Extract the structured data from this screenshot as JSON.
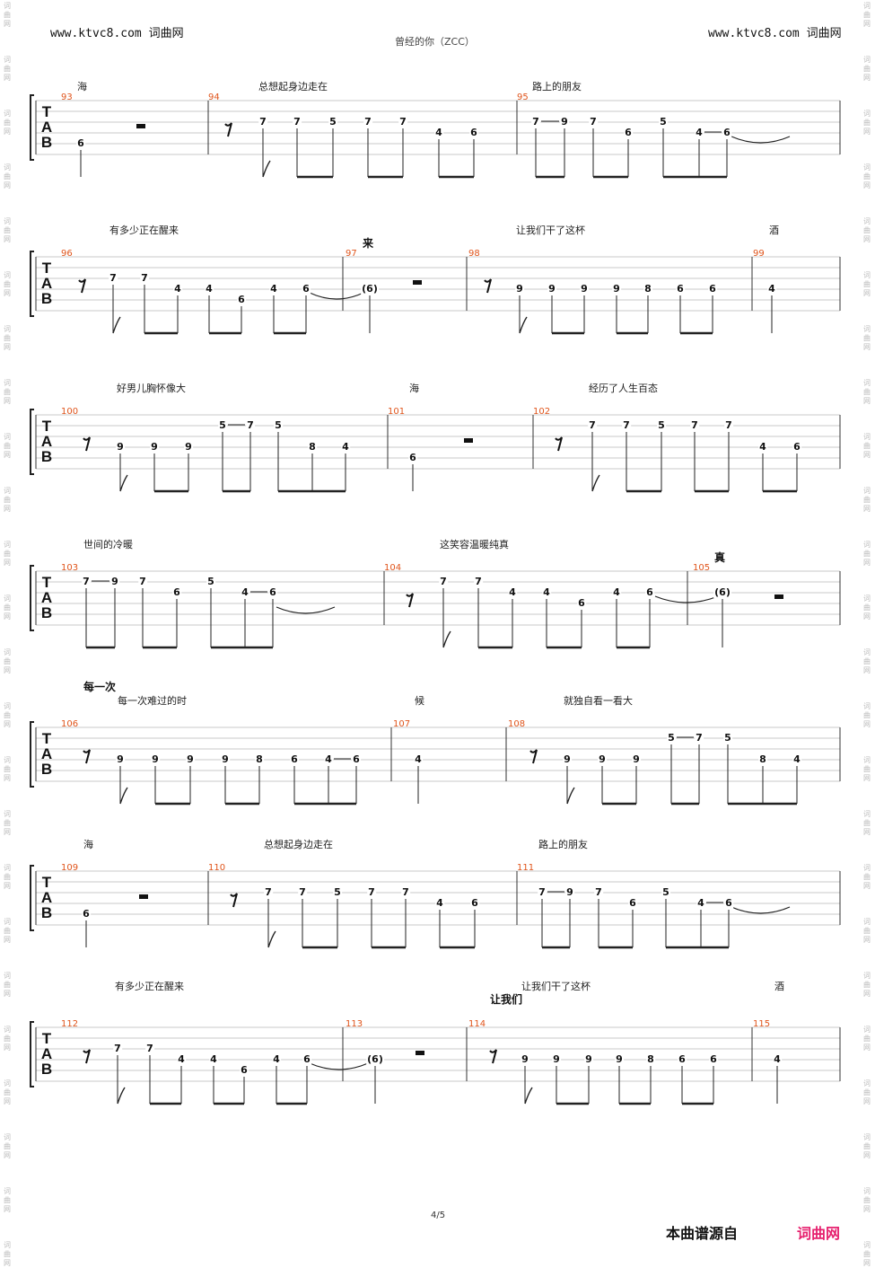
{
  "header": {
    "left_site": "www.ktvc8.com 词曲网",
    "right_site": "www.ktvc8.com 词曲网",
    "title": "曾经的你（ZCC）"
  },
  "side_watermark": "词曲网",
  "tab_letters": [
    "T",
    "A",
    "B"
  ],
  "systems": [
    {
      "lyrics": [
        "海",
        "总想起身边走在",
        "路上的朋友"
      ],
      "bold_text": [],
      "measures": [
        {
          "number": "93",
          "notes": [
            "6"
          ]
        },
        {
          "number": "94",
          "notes": [
            "7",
            "7",
            "5",
            "7",
            "7",
            "4",
            "6"
          ]
        },
        {
          "number": "95",
          "notes": [
            "7",
            "9",
            "7",
            "6",
            "5",
            "4",
            "6"
          ]
        }
      ]
    },
    {
      "lyrics": [
        "有多少正在醒来",
        "让我们干了这杯",
        "酒"
      ],
      "bold_text": [
        "来"
      ],
      "measures": [
        {
          "number": "96",
          "notes": [
            "7",
            "7",
            "4",
            "4",
            "6",
            "4",
            "6"
          ]
        },
        {
          "number": "97",
          "notes": [
            "(6)"
          ]
        },
        {
          "number": "98",
          "notes": [
            "9",
            "9",
            "9",
            "9",
            "8",
            "6",
            "6"
          ]
        },
        {
          "number": "99",
          "notes": [
            "4"
          ]
        }
      ]
    },
    {
      "lyrics": [
        "好男儿胸怀像大",
        "海",
        "经历了人生百态"
      ],
      "bold_text": [],
      "measures": [
        {
          "number": "100",
          "notes": [
            "9",
            "9",
            "9",
            "5",
            "7",
            "5",
            "8",
            "4"
          ]
        },
        {
          "number": "101",
          "notes": [
            "6"
          ]
        },
        {
          "number": "102",
          "notes": [
            "7",
            "7",
            "5",
            "7",
            "7",
            "4",
            "6"
          ]
        }
      ]
    },
    {
      "lyrics": [
        "世间的冷暖",
        "这笑容温暖纯真"
      ],
      "bold_text": [
        "真"
      ],
      "measures": [
        {
          "number": "103",
          "notes": [
            "7",
            "9",
            "7",
            "6",
            "5",
            "4",
            "6"
          ]
        },
        {
          "number": "104",
          "notes": [
            "7",
            "7",
            "4",
            "4",
            "6",
            "4",
            "6"
          ]
        },
        {
          "number": "105",
          "notes": [
            "(6)"
          ]
        }
      ]
    },
    {
      "lyrics": [
        "每一次难过的时",
        "候",
        "就独自看一看大"
      ],
      "bold_text": [
        "每一次"
      ],
      "measures": [
        {
          "number": "106",
          "notes": [
            "9",
            "9",
            "9",
            "9",
            "8",
            "6",
            "4",
            "6"
          ]
        },
        {
          "number": "107",
          "notes": [
            "4"
          ]
        },
        {
          "number": "108",
          "notes": [
            "9",
            "9",
            "9",
            "5",
            "7",
            "5",
            "8",
            "4"
          ]
        }
      ]
    },
    {
      "lyrics": [
        "海",
        "总想起身边走在",
        "路上的朋友"
      ],
      "bold_text": [],
      "measures": [
        {
          "number": "109",
          "notes": [
            "6"
          ]
        },
        {
          "number": "110",
          "notes": [
            "7",
            "7",
            "5",
            "7",
            "7",
            "4",
            "6"
          ]
        },
        {
          "number": "111",
          "notes": [
            "7",
            "9",
            "7",
            "6",
            "5",
            "4",
            "6"
          ]
        }
      ]
    },
    {
      "lyrics": [
        "有多少正在醒来",
        "让我们干了这杯",
        "酒"
      ],
      "bold_text": [
        "让我们"
      ],
      "measures": [
        {
          "number": "112",
          "notes": [
            "7",
            "7",
            "4",
            "4",
            "6",
            "4",
            "6"
          ]
        },
        {
          "number": "113",
          "notes": [
            "(6)"
          ]
        },
        {
          "number": "114",
          "notes": [
            "9",
            "9",
            "9",
            "9",
            "8",
            "6",
            "6"
          ]
        },
        {
          "number": "115",
          "notes": [
            "4"
          ]
        }
      ]
    }
  ],
  "footer": {
    "page": "4/5",
    "source_label": "本曲谱源自",
    "source_site": "词曲网"
  }
}
